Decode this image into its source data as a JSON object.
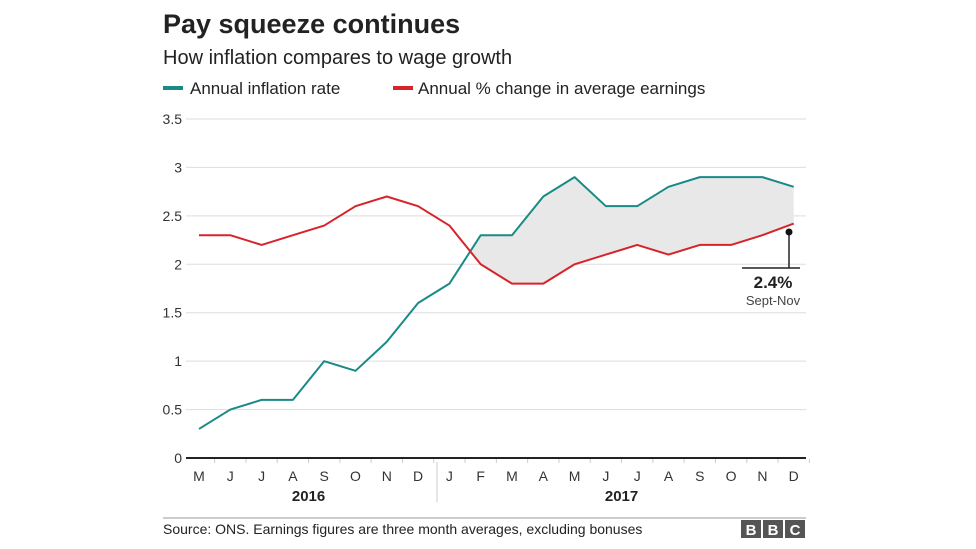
{
  "chart_data": {
    "type": "line",
    "title": "Pay squeeze continues",
    "subtitle": "How inflation compares to wage growth",
    "categories": [
      "M",
      "J",
      "J",
      "A",
      "S",
      "O",
      "N",
      "D",
      "J",
      "F",
      "M",
      "A",
      "M",
      "J",
      "J",
      "A",
      "S",
      "O",
      "N",
      "D"
    ],
    "year_labels": [
      {
        "label": "2016",
        "from": 0,
        "to": 7
      },
      {
        "label": "2017",
        "from": 8,
        "to": 19
      }
    ],
    "series": [
      {
        "name": "Annual inflation rate",
        "color": "#1a8a86",
        "values": [
          0.3,
          0.5,
          0.6,
          0.6,
          1.0,
          0.9,
          1.2,
          1.6,
          1.8,
          2.3,
          2.3,
          2.7,
          2.9,
          2.6,
          2.6,
          2.8,
          2.9,
          2.9,
          2.9,
          2.8
        ]
      },
      {
        "name": "Annual % change in average earnings",
        "color": "#d6242b",
        "values": [
          2.3,
          2.3,
          2.2,
          2.3,
          2.4,
          2.6,
          2.7,
          2.6,
          2.4,
          2.0,
          1.8,
          1.8,
          2.0,
          2.1,
          2.2,
          2.1,
          2.2,
          2.2,
          2.3,
          2.42
        ]
      }
    ],
    "yticks": [
      "0",
      "0.5",
      "1",
      "1.5",
      "2",
      "2.5",
      "3",
      "3.5"
    ],
    "ylim": [
      0,
      3.5
    ],
    "grid": true,
    "legend": "top",
    "shaded_gap_color": "#e8e8e8",
    "annotation": {
      "value": "2.4%",
      "label": "Sept-Nov"
    },
    "source": "Source: ONS. Earnings figures are three month averages, excluding bonuses",
    "logo": "BBC"
  }
}
